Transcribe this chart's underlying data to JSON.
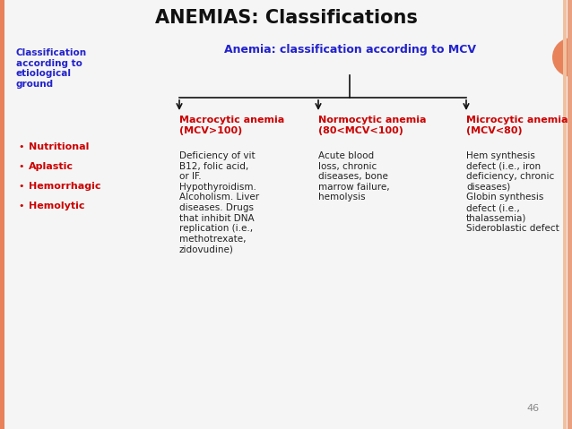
{
  "title": "ANEMIAS: Classifications",
  "title_color": "#111111",
  "title_fontsize": 15,
  "bg_color": "#f5f5f5",
  "left_header": "Classification\naccording to\netiological\nground",
  "left_header_color": "#2222cc",
  "left_bullets": [
    "Nutritional",
    "Aplastic",
    "Hemorrhagic",
    "Hemolytic"
  ],
  "left_bullets_color": "#cc0000",
  "mcv_header": "Anemia: classification according to MCV",
  "mcv_header_color": "#2222cc",
  "col1_header": "Macrocytic anemia\n(MCV>100)",
  "col2_header": "Normocytic anemia\n(80<MCV<100)",
  "col3_header": "Microcytic anemia\n(MCV<80)",
  "col_header_color": "#cc0000",
  "col1_text": "Deficiency of vit\nB12, folic acid,\nor IF.\nHypothyroidism.\nAlcoholism. Liver\ndiseases. Drugs\nthat inhibit DNA\nreplication (i.e.,\nmethotrexate,\nzidovudine)",
  "col2_text": "Acute blood\nloss, chronic\ndiseases, bone\nmarrow failure,\nhemolysis",
  "col3_text": "Hem synthesis\ndefect (i.e., iron\ndeficiency, chronic\ndiseases)\nGlobin synthesis\ndefect (i.e.,\nthalassemia)\nSideroblastic defect",
  "col_text_color": "#222222",
  "page_number": "46",
  "arrow_color": "#111111",
  "border_left_color": "#e8825a",
  "border_right_color": "#e8825a"
}
